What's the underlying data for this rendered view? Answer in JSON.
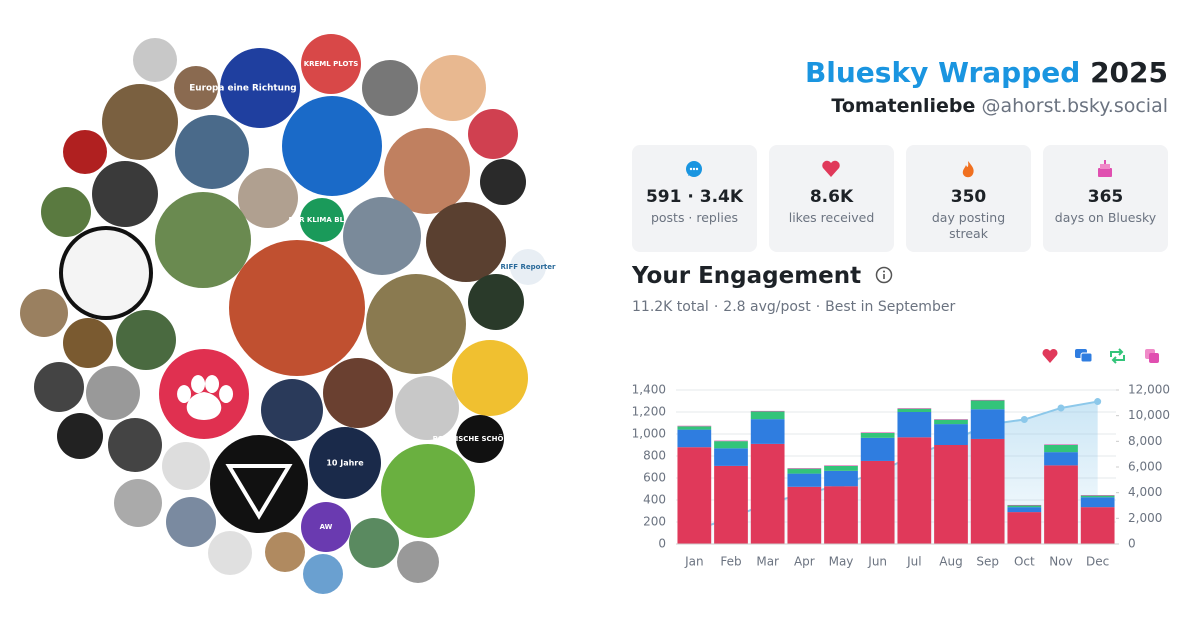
{
  "header": {
    "title": "Bluesky Wrapped",
    "year": "2025",
    "display_name": "Tomatenliebe",
    "handle": "@ahorst.bsky.social"
  },
  "stats": [
    {
      "value": "591 · 3.4K",
      "label": "posts · replies"
    },
    {
      "value": "8.6K",
      "label": "likes received"
    },
    {
      "value": "350",
      "label": "day posting streak"
    },
    {
      "value": "365",
      "label": "days on Bluesky"
    }
  ],
  "engagement": {
    "title": "Your Engagement",
    "summary": [
      "11.2K total",
      "2.8 avg/post",
      "Best in September"
    ],
    "separator": "·"
  },
  "avatar_texts": [
    "Europa eine Richtung geben",
    "KREML PLOTS",
    "DER KLIMA BLOG",
    "RIFF Reporter",
    "10 Jahre",
    "AW",
    "POLITISCHE SCHÖNHEIT"
  ],
  "chart_data": {
    "type": "bar",
    "stacked": true,
    "categories": [
      "Jan",
      "Feb",
      "Mar",
      "Apr",
      "May",
      "Jun",
      "Jul",
      "Aug",
      "Sep",
      "Oct",
      "Nov",
      "Dec"
    ],
    "series": [
      {
        "color": "#e0395a",
        "values": [
          880,
          710,
          910,
          520,
          525,
          755,
          970,
          900,
          955,
          290,
          715,
          335
        ]
      },
      {
        "color": "#2f7de0",
        "values": [
          160,
          160,
          225,
          120,
          140,
          210,
          230,
          190,
          270,
          45,
          120,
          90
        ]
      },
      {
        "color": "#33c47a",
        "values": [
          30,
          65,
          70,
          45,
          45,
          45,
          30,
          40,
          80,
          15,
          65,
          15
        ]
      },
      {
        "color": "#e04fb0",
        "values": [
          5,
          5,
          5,
          5,
          5,
          5,
          5,
          5,
          5,
          5,
          5,
          5
        ]
      },
      {
        "type": "area",
        "axis": "y2",
        "color": "#8cc8ea",
        "values": [
          1100,
          2000,
          3200,
          3900,
          4600,
          5600,
          6900,
          8000,
          9300,
          9700,
          10600,
          11100
        ]
      }
    ],
    "ylim": [
      0,
      1400
    ],
    "yticks": [
      0,
      200,
      400,
      600,
      800,
      {
        "value": 1000,
        "label": "1,000"
      },
      {
        "value": 1200,
        "label": "1,200"
      },
      {
        "value": 1400,
        "label": "1,400"
      }
    ],
    "y2lim": [
      0,
      12000
    ],
    "y2ticks": [
      0,
      {
        "value": 2000,
        "label": "2,000"
      },
      {
        "value": 4000,
        "label": "4,000"
      },
      {
        "value": 6000,
        "label": "6,000"
      },
      {
        "value": 8000,
        "label": "8,000"
      },
      {
        "value": 10000,
        "label": "10,000"
      },
      {
        "value": 12000,
        "label": "12,000"
      }
    ],
    "grid": true
  }
}
